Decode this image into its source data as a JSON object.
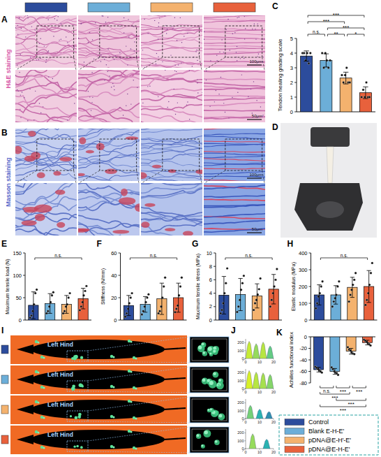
{
  "figure": {
    "groups": [
      {
        "name": "Control",
        "color": "#2c4c9c"
      },
      {
        "name": "Blank E-H-E'",
        "color": "#6caed8"
      },
      {
        "name": "pDNA@E-H'-E'",
        "color": "#f4b26e"
      },
      {
        "name": "pDNA@E-H-E'",
        "color": "#e8613c"
      }
    ],
    "panel_A": {
      "letter": "A",
      "label": "H&E staining",
      "scale_bars": [
        "100μm",
        "50μm"
      ]
    },
    "panel_B": {
      "letter": "B",
      "label": "Masson staining",
      "scale_bars": [
        "100μm",
        "50μm"
      ]
    },
    "panel_D": {
      "letter": "D"
    },
    "panel_I": {
      "letter": "I",
      "label": "Left Hind"
    },
    "panel_J": {
      "letter": "J",
      "zlim": [
        0,
        250
      ],
      "zticks": [
        0,
        100,
        200
      ],
      "xlim": [
        0,
        20
      ],
      "xticks": [
        0,
        10,
        20
      ],
      "peaks": [
        [
          220,
          190,
          210,
          160
        ],
        [
          230,
          210,
          200,
          180
        ],
        [
          170,
          120,
          90
        ],
        [
          190,
          120
        ]
      ]
    }
  },
  "chart_data": [
    {
      "type": "bar",
      "panel": "C",
      "ylabel": "Tendon healing grading scale",
      "categories": [
        null,
        null,
        null,
        null
      ],
      "values": [
        3.8,
        3.5,
        2.3,
        1.3
      ],
      "colors": [
        "#2c4c9c",
        "#6caed8",
        "#f4b26e",
        "#e8613c"
      ],
      "errors": [
        0.35,
        0.45,
        0.4,
        0.4
      ],
      "points": [
        [
          4,
          4,
          3.5,
          4,
          3.3,
          4
        ],
        [
          4,
          3,
          4,
          3.5,
          3,
          3.5
        ],
        [
          2.5,
          2,
          2.5,
          3,
          2,
          2
        ],
        [
          1,
          1.5,
          1,
          2,
          1,
          1
        ]
      ],
      "ylim": [
        0,
        5
      ],
      "yticks": [
        0,
        1,
        2,
        3,
        4,
        5
      ],
      "significance": [
        {
          "from": 0,
          "to": 1,
          "label": "n.s."
        },
        {
          "from": 1,
          "to": 2,
          "label": "**"
        },
        {
          "from": 2,
          "to": 3,
          "label": "*"
        },
        {
          "from": 1,
          "to": 3,
          "label": "***"
        },
        {
          "from": 0,
          "to": 2,
          "label": "***"
        },
        {
          "from": 0,
          "to": 3,
          "label": "***"
        }
      ]
    },
    {
      "type": "bar",
      "panel": "E",
      "ylabel": "Maximum tensile load (N)",
      "categories": [
        null,
        null,
        null,
        null
      ],
      "values": [
        33,
        37,
        35,
        48
      ],
      "colors": [
        "#2c4c9c",
        "#6caed8",
        "#f4b26e",
        "#e8613c"
      ],
      "errors": [
        30,
        22,
        20,
        23
      ],
      "points": [
        [
          5,
          10,
          20,
          35,
          60,
          68
        ],
        [
          15,
          20,
          30,
          40,
          55,
          62
        ],
        [
          15,
          20,
          30,
          35,
          50,
          60
        ],
        [
          22,
          30,
          40,
          55,
          65,
          76
        ]
      ],
      "ylim": [
        0,
        150
      ],
      "yticks": [
        0,
        50,
        100,
        150
      ],
      "significance": [
        {
          "from": 0,
          "to": 3,
          "label": "n.s."
        }
      ]
    },
    {
      "type": "bar",
      "panel": "F",
      "ylabel": "Stiffness (N/mm)",
      "categories": [
        null,
        null,
        null,
        null
      ],
      "values": [
        13,
        14,
        19,
        20
      ],
      "colors": [
        "#2c4c9c",
        "#6caed8",
        "#f4b26e",
        "#e8613c"
      ],
      "errors": [
        9,
        7,
        14,
        13
      ],
      "points": [
        [
          3,
          6,
          10,
          15,
          20,
          24
        ],
        [
          5,
          8,
          12,
          16,
          20,
          23
        ],
        [
          6,
          8,
          12,
          20,
          30,
          38
        ],
        [
          7,
          10,
          13,
          22,
          30,
          38
        ]
      ],
      "ylim": [
        0,
        60
      ],
      "yticks": [
        0,
        20,
        40,
        60
      ],
      "significance": [
        {
          "from": 0,
          "to": 3,
          "label": "n.s."
        }
      ]
    },
    {
      "type": "bar",
      "panel": "G",
      "ylabel": "Maximum tensile stress (MPa)",
      "categories": [
        null,
        null,
        null,
        null
      ],
      "values": [
        3.7,
        3.8,
        3.6,
        4.6
      ],
      "colors": [
        "#2c4c9c",
        "#6caed8",
        "#f4b26e",
        "#e8613c"
      ],
      "errors": [
        2.8,
        2.4,
        1.8,
        2.2
      ],
      "points": [
        [
          1,
          1.5,
          2.5,
          4,
          5.5,
          7.7
        ],
        [
          1.2,
          2,
          3,
          4.5,
          5.5,
          6.6
        ],
        [
          1.5,
          2.5,
          3,
          3.8,
          4.6,
          6.2
        ],
        [
          2,
          3,
          4,
          5,
          6,
          7.6
        ]
      ],
      "ylim": [
        0,
        10
      ],
      "yticks": [
        0,
        2,
        4,
        6,
        8,
        10
      ],
      "significance": [
        {
          "from": 0,
          "to": 3,
          "label": "n.s."
        }
      ]
    },
    {
      "type": "bar",
      "panel": "H",
      "ylabel": "Elastic modulus (MPa)",
      "categories": [
        null,
        null,
        null,
        null
      ],
      "values": [
        150,
        150,
        195,
        200
      ],
      "colors": [
        "#2c4c9c",
        "#6caed8",
        "#f4b26e",
        "#e8613c"
      ],
      "errors": [
        60,
        55,
        60,
        95
      ],
      "points": [
        [
          70,
          100,
          140,
          160,
          200,
          230
        ],
        [
          80,
          110,
          130,
          150,
          200,
          230
        ],
        [
          110,
          150,
          180,
          210,
          240,
          280
        ],
        [
          90,
          120,
          160,
          210,
          280,
          340
        ]
      ],
      "ylim": [
        0,
        400
      ],
      "yticks": [
        0,
        100,
        200,
        300,
        400
      ],
      "significance": [
        {
          "from": 0,
          "to": 3,
          "label": "n.s."
        }
      ]
    },
    {
      "type": "bar",
      "panel": "K",
      "ylabel": "Achilles functional index",
      "categories": [
        null,
        null,
        null,
        null
      ],
      "values": [
        -57,
        -60,
        -25,
        -10
      ],
      "colors": [
        "#2c4c9c",
        "#6caed8",
        "#f4b26e",
        "#e8613c"
      ],
      "errors": [
        4,
        5,
        5,
        4
      ],
      "points": [
        [
          -52,
          -54,
          -56,
          -58,
          -60,
          -62
        ],
        [
          -53,
          -56,
          -60,
          -62,
          -63,
          -66
        ],
        [
          -18,
          -22,
          -24,
          -27,
          -29,
          -30
        ],
        [
          -5,
          -7,
          -9,
          -11,
          -13,
          -15
        ]
      ],
      "ylim": [
        -80,
        0
      ],
      "yticks": [
        -80,
        -60,
        -40,
        -20,
        0
      ],
      "significance": [
        {
          "from": 0,
          "to": 1,
          "label": "n.s."
        },
        {
          "from": 1,
          "to": 2,
          "label": "***"
        },
        {
          "from": 2,
          "to": 3,
          "label": "***"
        },
        {
          "from": 0,
          "to": 2,
          "label": "***"
        },
        {
          "from": 1,
          "to": 3,
          "label": "***"
        },
        {
          "from": 0,
          "to": 3,
          "label": "***"
        }
      ]
    }
  ]
}
